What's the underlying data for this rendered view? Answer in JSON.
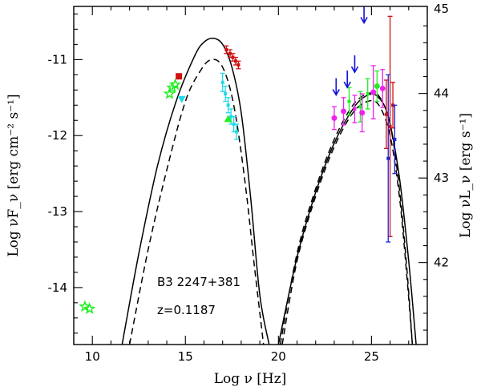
{
  "chart_data": {
    "type": "scatter",
    "title": "",
    "xlabel": "Log ν  [Hz]",
    "ylabel_left": "Log νF_ν  [erg cm⁻² s⁻¹]",
    "ylabel_right": "Log νL_ν  [erg s⁻¹]",
    "xlim": [
      9,
      28
    ],
    "ylim": [
      -14.75,
      -10.3
    ],
    "ylim_right": [
      41.03,
      45.03
    ],
    "x_ticks": [
      10,
      15,
      20,
      25
    ],
    "y_ticks_left": [
      -14,
      -13,
      -12,
      -11
    ],
    "y_ticks_right": [
      42,
      43,
      44,
      45
    ],
    "annotations": [
      "B3 2247+381",
      "z=0.1187"
    ],
    "models": [
      {
        "name": "synchrotron-high",
        "style": "solid",
        "x": [
          11.6,
          12.5,
          13.5,
          14.5,
          15.5,
          16.0,
          16.5,
          17.0,
          17.5,
          18.0,
          18.5,
          19.0,
          19.5
        ],
        "y": [
          -14.75,
          -13.55,
          -12.4,
          -11.55,
          -10.95,
          -10.77,
          -10.72,
          -10.8,
          -11.1,
          -11.7,
          -12.8,
          -14.1,
          -14.75
        ]
      },
      {
        "name": "synchrotron-low",
        "style": "dashed",
        "x": [
          12.0,
          13.0,
          14.0,
          15.0,
          15.8,
          16.4,
          17.0,
          17.6,
          18.2,
          18.7,
          19.2
        ],
        "y": [
          -14.75,
          -13.5,
          -12.45,
          -11.55,
          -11.15,
          -11.0,
          -11.1,
          -11.6,
          -12.6,
          -13.7,
          -14.75
        ]
      },
      {
        "name": "ssc-high",
        "style": "solid",
        "x": [
          20.0,
          21.0,
          22.0,
          23.0,
          24.0,
          24.7,
          25.3,
          25.9,
          26.5,
          27.0,
          27.4
        ],
        "y": [
          -14.75,
          -13.6,
          -12.75,
          -12.1,
          -11.65,
          -11.48,
          -11.48,
          -11.75,
          -12.55,
          -13.65,
          -14.75
        ]
      },
      {
        "name": "ssc-low-a",
        "style": "dashed",
        "x": [
          20.1,
          21.0,
          22.0,
          23.0,
          24.0,
          24.8,
          25.4,
          26.0,
          26.5,
          26.9,
          27.2
        ],
        "y": [
          -14.75,
          -13.55,
          -12.7,
          -12.05,
          -11.6,
          -11.45,
          -11.48,
          -11.85,
          -12.7,
          -13.75,
          -14.75
        ]
      },
      {
        "name": "ssc-low-b",
        "style": "dashed",
        "x": [
          20.2,
          21.0,
          22.0,
          23.0,
          24.0,
          24.8,
          25.4,
          26.0,
          26.5,
          26.9,
          27.2
        ],
        "y": [
          -14.75,
          -13.65,
          -12.8,
          -12.15,
          -11.7,
          -11.55,
          -11.6,
          -12.0,
          -12.8,
          -13.85,
          -14.75
        ]
      }
    ],
    "points": [
      {
        "marker": "star",
        "color": "#22ee22",
        "x": 9.6,
        "y": -14.25
      },
      {
        "marker": "star",
        "color": "#22ee22",
        "x": 9.85,
        "y": -14.28
      },
      {
        "marker": "star",
        "color": "#22ee22",
        "x": 14.15,
        "y": -11.45
      },
      {
        "marker": "star",
        "color": "#22ee22",
        "x": 14.3,
        "y": -11.37
      },
      {
        "marker": "star",
        "color": "#22ee22",
        "x": 14.45,
        "y": -11.33
      },
      {
        "marker": "square",
        "color": "#d01010",
        "x": 14.65,
        "y": -11.22
      },
      {
        "marker": "triangle-down",
        "color": "#22d8e8",
        "x": 14.8,
        "y": -11.52
      },
      {
        "marker": "triangle-up",
        "color": "#22ee22",
        "x": 17.3,
        "y": -11.78
      },
      {
        "marker": "circle",
        "color": "#ee22ee",
        "x": 23.0,
        "y": -11.77
      },
      {
        "marker": "circle",
        "color": "#ee22ee",
        "x": 23.5,
        "y": -11.68
      },
      {
        "marker": "circle",
        "color": "#ee22ee",
        "x": 24.5,
        "y": -11.7
      },
      {
        "marker": "circle",
        "color": "#ee22ee",
        "x": 25.1,
        "y": -11.43
      },
      {
        "marker": "circle",
        "color": "#22ee22",
        "x": 25.3,
        "y": -11.35
      },
      {
        "marker": "circle",
        "color": "#ee22ee",
        "x": 25.6,
        "y": -11.38
      }
    ],
    "errorbars": [
      {
        "color": "#22d8e8",
        "x": 17.0,
        "y": -11.3,
        "err": 0.12
      },
      {
        "color": "#22d8e8",
        "x": 17.15,
        "y": -11.45,
        "err": 0.1
      },
      {
        "color": "#22d8e8",
        "x": 17.3,
        "y": -11.6,
        "err": 0.1
      },
      {
        "color": "#22d8e8",
        "x": 17.45,
        "y": -11.75,
        "err": 0.1
      },
      {
        "color": "#22d8e8",
        "x": 17.6,
        "y": -11.85,
        "err": 0.1
      },
      {
        "color": "#22d8e8",
        "x": 17.75,
        "y": -11.95,
        "err": 0.1
      },
      {
        "color": "#d01010",
        "x": 17.2,
        "y": -10.87,
        "err": 0.05
      },
      {
        "color": "#d01010",
        "x": 17.4,
        "y": -10.92,
        "err": 0.05
      },
      {
        "color": "#d01010",
        "x": 17.55,
        "y": -10.97,
        "err": 0.05
      },
      {
        "color": "#d01010",
        "x": 17.7,
        "y": -11.02,
        "err": 0.05
      },
      {
        "color": "#d01010",
        "x": 17.85,
        "y": -11.07,
        "err": 0.05
      },
      {
        "color": "#ee22ee",
        "x": 23.0,
        "y": -11.77,
        "err": 0.15
      },
      {
        "color": "#ee22ee",
        "x": 23.5,
        "y": -11.68,
        "err": 0.18
      },
      {
        "color": "#22ee22",
        "x": 23.8,
        "y": -11.55,
        "err": 0.18
      },
      {
        "color": "#ee22ee",
        "x": 24.1,
        "y": -11.65,
        "err": 0.18
      },
      {
        "color": "#22ee22",
        "x": 24.4,
        "y": -11.62,
        "err": 0.2
      },
      {
        "color": "#ee22ee",
        "x": 24.5,
        "y": -11.7,
        "err": 0.25
      },
      {
        "color": "#22ee22",
        "x": 24.8,
        "y": -11.45,
        "err": 0.2
      },
      {
        "color": "#ee22ee",
        "x": 25.1,
        "y": -11.43,
        "err": 0.35
      },
      {
        "color": "#22ee22",
        "x": 25.3,
        "y": -11.35,
        "err": 0.2
      },
      {
        "color": "#ee22ee",
        "x": 25.6,
        "y": -11.38,
        "err": 0.25
      },
      {
        "color": "#d01010",
        "x": 25.8,
        "y": -11.72,
        "err": 0.45
      },
      {
        "color": "#d01010",
        "x": 26.0,
        "y": -11.88,
        "err": 1.45
      },
      {
        "color": "#d01010",
        "x": 26.15,
        "y": -11.6,
        "err": 0.3
      },
      {
        "color": "#2222dd",
        "x": 25.9,
        "y": -12.3,
        "err": 1.1
      },
      {
        "color": "#2222dd",
        "x": 26.25,
        "y": -12.05,
        "err": 0.45
      }
    ],
    "upper_limits": [
      {
        "color": "#1111dd",
        "x": 23.1,
        "y": -11.35
      },
      {
        "color": "#1111dd",
        "x": 23.7,
        "y": -11.25
      },
      {
        "color": "#1111dd",
        "x": 24.1,
        "y": -11.05
      },
      {
        "color": "#1111dd",
        "x": 24.6,
        "y": -10.4
      }
    ]
  }
}
